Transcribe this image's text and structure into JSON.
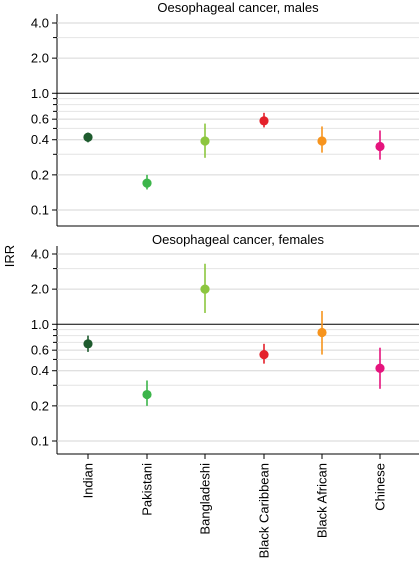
{
  "chart_data": {
    "type": "scatter",
    "ylabel": "IRR",
    "y_scale": "log",
    "categories": [
      "Indian",
      "Pakistani",
      "Bangladeshi",
      "Black Caribbean",
      "Black African",
      "Chinese"
    ],
    "colors": [
      "#1e5b2e",
      "#3cb54a",
      "#8cc63f",
      "#e4202a",
      "#f7941d",
      "#e5147d"
    ],
    "y_ticks": [
      0.1,
      0.2,
      0.4,
      0.6,
      1.0,
      2.0,
      4.0
    ],
    "y_tick_labels": [
      "0.1",
      "0.2",
      "0.4",
      "0.6",
      "1.0",
      "2.0",
      "4.0"
    ],
    "reference_line": 1.0,
    "grid": true,
    "panels": [
      {
        "title": "Oesophageal cancer, males",
        "ylim": [
          0.08,
          5.0
        ],
        "points": [
          {
            "category": "Indian",
            "irr": 0.42,
            "lower": 0.38,
            "upper": 0.46
          },
          {
            "category": "Pakistani",
            "irr": 0.17,
            "lower": 0.15,
            "upper": 0.2
          },
          {
            "category": "Bangladeshi",
            "irr": 0.39,
            "lower": 0.28,
            "upper": 0.55
          },
          {
            "category": "Black Caribbean",
            "irr": 0.58,
            "lower": 0.51,
            "upper": 0.68
          },
          {
            "category": "Black African",
            "irr": 0.39,
            "lower": 0.31,
            "upper": 0.52
          },
          {
            "category": "Chinese",
            "irr": 0.35,
            "lower": 0.27,
            "upper": 0.48
          }
        ]
      },
      {
        "title": "Oesophageal cancer, females",
        "ylim": [
          0.08,
          5.0
        ],
        "points": [
          {
            "category": "Indian",
            "irr": 0.68,
            "lower": 0.58,
            "upper": 0.8
          },
          {
            "category": "Pakistani",
            "irr": 0.25,
            "lower": 0.2,
            "upper": 0.33
          },
          {
            "category": "Bangladeshi",
            "irr": 2.0,
            "lower": 1.25,
            "upper": 3.3
          },
          {
            "category": "Black Caribbean",
            "irr": 0.55,
            "lower": 0.46,
            "upper": 0.68
          },
          {
            "category": "Black African",
            "irr": 0.85,
            "lower": 0.55,
            "upper": 1.3
          },
          {
            "category": "Chinese",
            "irr": 0.42,
            "lower": 0.28,
            "upper": 0.63
          }
        ]
      }
    ]
  }
}
